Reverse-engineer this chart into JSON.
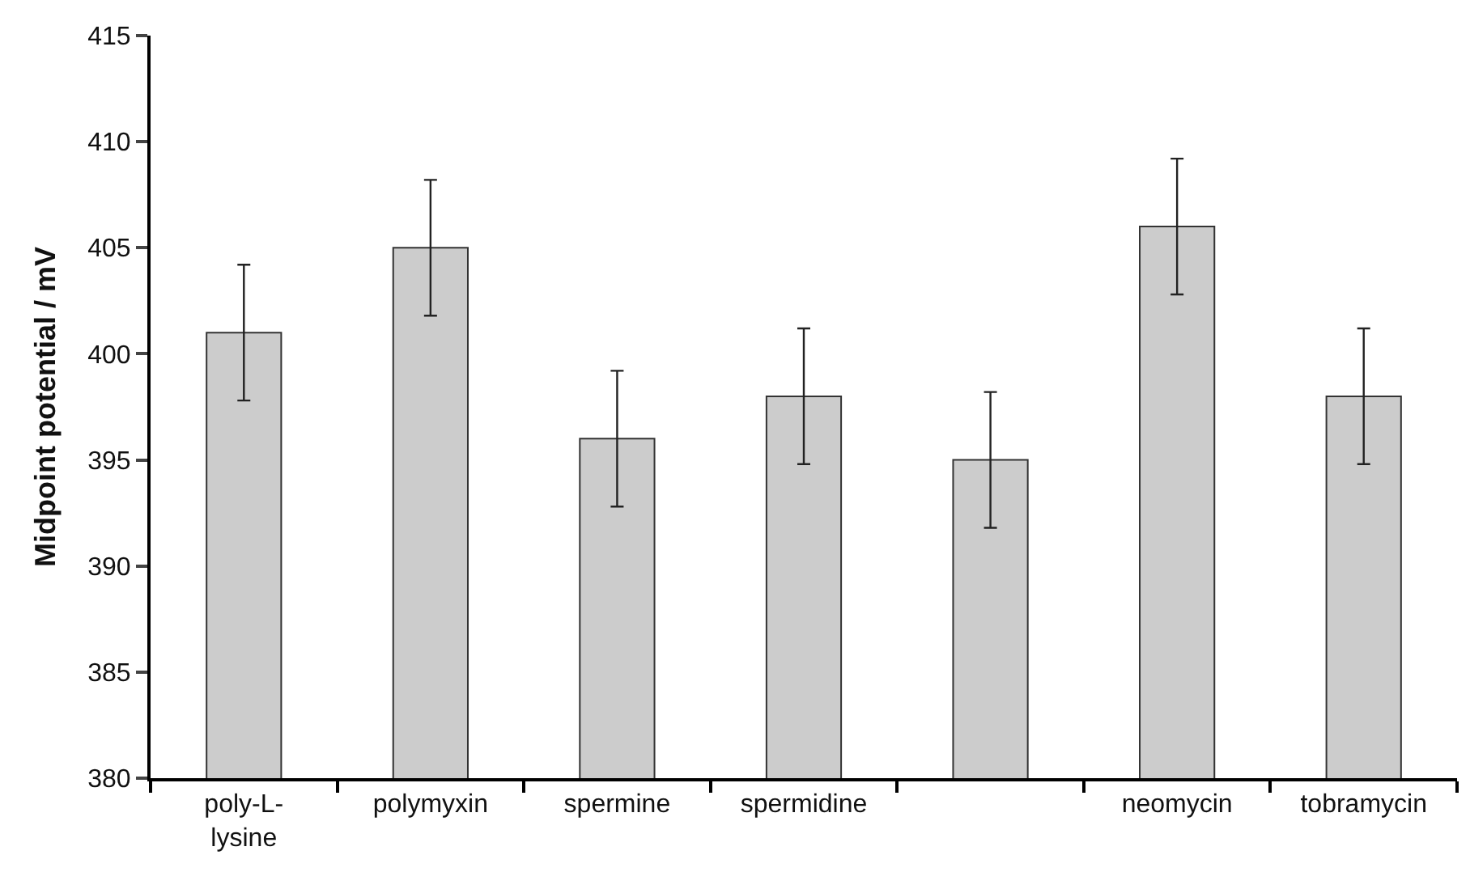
{
  "chart_data": {
    "type": "bar",
    "ylabel": "Midpoint potential / mV",
    "categories": [
      "poly-L-lysine",
      "polymyxin",
      "spermine",
      "spermidine",
      null,
      "neomycin",
      "tobramycin"
    ],
    "values": [
      401,
      405,
      396,
      398,
      395,
      406,
      398
    ],
    "errors": [
      3.2,
      3.2,
      3.2,
      3.2,
      3.2,
      3.2,
      3.2
    ],
    "color": "#cccccc",
    "ylim": [
      380,
      415
    ],
    "yticks": [
      380,
      385,
      390,
      395,
      400,
      405,
      410,
      415
    ]
  }
}
